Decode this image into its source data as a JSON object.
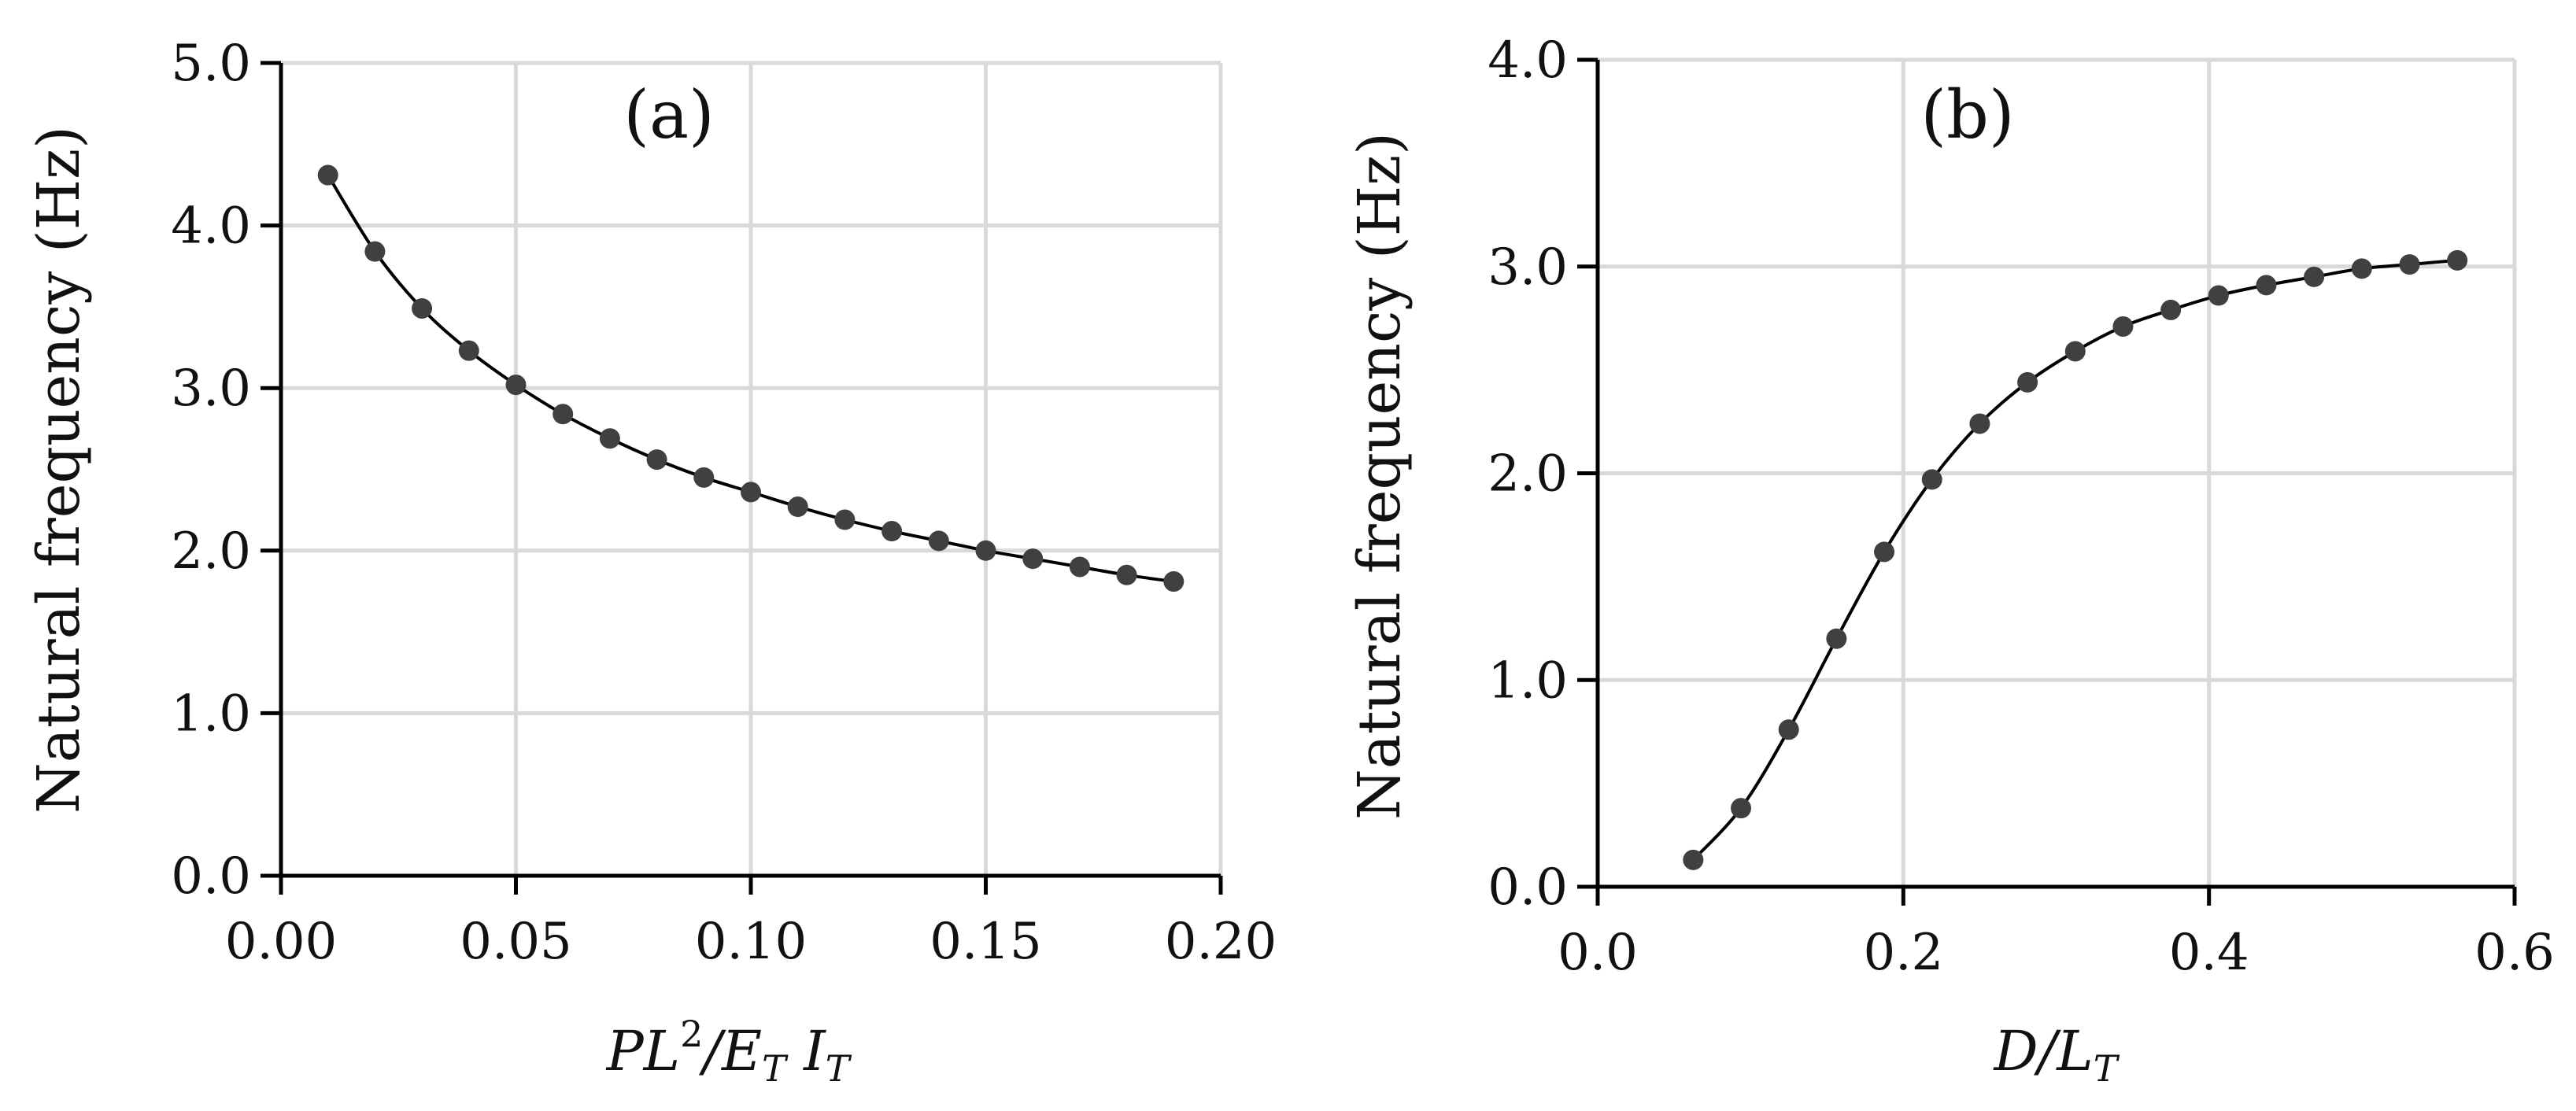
{
  "chart_data": [
    {
      "type": "line",
      "panel_label": "(a)",
      "xlabel_parts": {
        "base": "PL",
        "sup": "2",
        "mid": "/E",
        "sub1": "T",
        "space": " I",
        "sub2": "T"
      },
      "ylabel": "Natural frequency (Hz)",
      "xlim": [
        0,
        0.2
      ],
      "ylim": [
        0,
        5
      ],
      "xticks": [
        0,
        0.05,
        0.1,
        0.15,
        0.2
      ],
      "xtick_labels": [
        "0.00",
        "0.05",
        "0.10",
        "0.15",
        "0.20"
      ],
      "yticks": [
        0,
        1,
        2,
        3,
        4,
        5
      ],
      "ytick_labels": [
        "0.0",
        "1.0",
        "2.0",
        "3.0",
        "4.0",
        "5.0"
      ],
      "grid": true,
      "series": [
        {
          "name": "Natural frequency",
          "x": [
            0.01,
            0.02,
            0.03,
            0.04,
            0.05,
            0.06,
            0.07,
            0.08,
            0.09,
            0.1,
            0.11,
            0.12,
            0.13,
            0.14,
            0.15,
            0.16,
            0.17,
            0.18,
            0.19
          ],
          "y": [
            4.31,
            3.84,
            3.49,
            3.23,
            3.02,
            2.84,
            2.69,
            2.56,
            2.45,
            2.36,
            2.27,
            2.19,
            2.12,
            2.06,
            2.0,
            1.95,
            1.9,
            1.85,
            1.81
          ]
        }
      ]
    },
    {
      "type": "line",
      "panel_label": "(b)",
      "xlabel_parts": {
        "base": "D/L",
        "sub": "T"
      },
      "ylabel": "Natural frequency (Hz)",
      "xlim": [
        0,
        0.6
      ],
      "ylim": [
        0,
        4
      ],
      "xticks": [
        0,
        0.2,
        0.4,
        0.6
      ],
      "xtick_labels": [
        "0.0",
        "0.2",
        "0.4",
        "0.6"
      ],
      "yticks": [
        0,
        1,
        2,
        3,
        4
      ],
      "ytick_labels": [
        "0.0",
        "1.0",
        "2.0",
        "3.0",
        "4.0"
      ],
      "grid": true,
      "series": [
        {
          "name": "Natural frequency",
          "x": [
            0.0625,
            0.09375,
            0.125,
            0.15625,
            0.1875,
            0.21875,
            0.25,
            0.28125,
            0.3125,
            0.34375,
            0.375,
            0.40625,
            0.4375,
            0.46875,
            0.5,
            0.53125,
            0.5625
          ],
          "y": [
            0.13,
            0.38,
            0.76,
            1.2,
            1.62,
            1.97,
            2.24,
            2.44,
            2.59,
            2.71,
            2.79,
            2.86,
            2.91,
            2.95,
            2.99,
            3.01,
            3.03
          ]
        }
      ]
    }
  ]
}
